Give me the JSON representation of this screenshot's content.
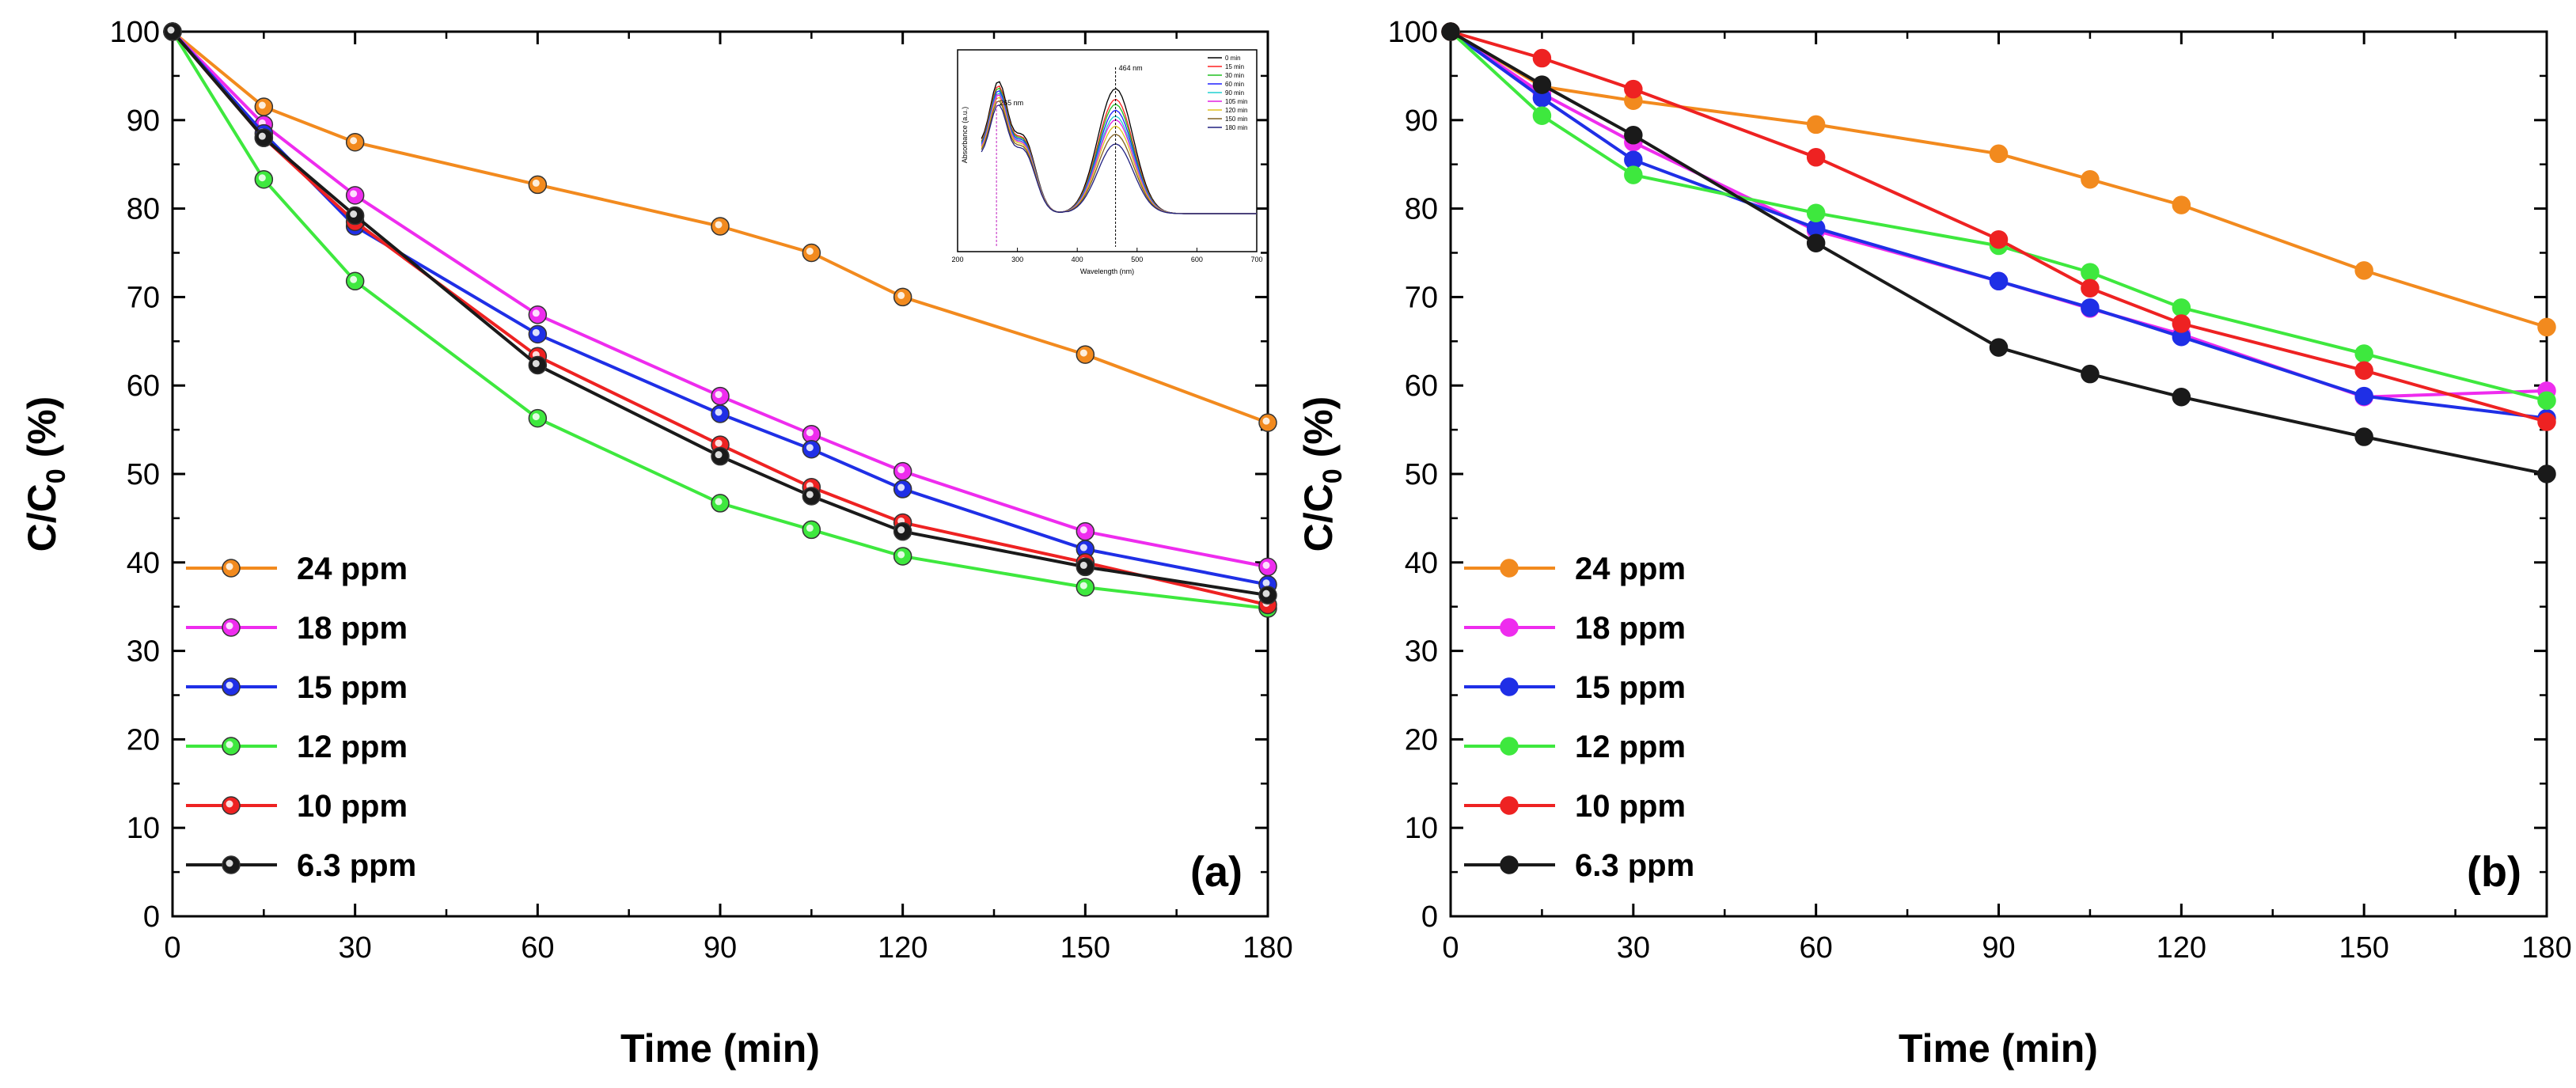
{
  "chart_data": [
    {
      "type": "line",
      "panel_label": "(a)",
      "xlabel": "Time (min)",
      "ylabel_main": "C/C",
      "ylabel_sub": "0",
      "ylabel_unit": " (%)",
      "xlim": [
        0,
        180
      ],
      "ylim": [
        0,
        100
      ],
      "x_ticks": [
        "0",
        "30",
        "60",
        "90",
        "120",
        "150",
        "180"
      ],
      "y_ticks": [
        "0",
        "10",
        "20",
        "30",
        "40",
        "50",
        "60",
        "70",
        "80",
        "90",
        "100"
      ],
      "legend_position": "bottom-left",
      "marker_style": "hollow-center",
      "x": [
        0,
        15,
        30,
        60,
        90,
        105,
        120,
        150,
        180
      ],
      "series": [
        {
          "name": "24 ppm",
          "color": "#f28a1e",
          "values": [
            100,
            91.5,
            87.5,
            82.7,
            78,
            75,
            70,
            63.5,
            55.8
          ]
        },
        {
          "name": "18 ppm",
          "color": "#ee2cee",
          "values": [
            100,
            89.5,
            81.5,
            68,
            58.8,
            54.5,
            50.3,
            43.5,
            39.5
          ]
        },
        {
          "name": "15 ppm",
          "color": "#1f2fe6",
          "values": [
            100,
            88.5,
            78,
            65.8,
            56.8,
            52.8,
            48.3,
            41.5,
            37.5
          ]
        },
        {
          "name": "12 ppm",
          "color": "#3ee83e",
          "values": [
            100,
            83.3,
            71.8,
            56.3,
            46.7,
            43.7,
            40.7,
            37.2,
            34.8
          ]
        },
        {
          "name": "10 ppm",
          "color": "#ee2222",
          "values": [
            100,
            88,
            78.5,
            63.3,
            53.3,
            48.5,
            44.5,
            40,
            35.2
          ]
        },
        {
          "name": "6.3 ppm",
          "color": "#1a1a1a",
          "values": [
            100,
            88,
            79.2,
            62.3,
            52,
            47.5,
            43.5,
            39.5,
            36.3
          ]
        }
      ],
      "inset": {
        "xlabel": "Wavelength (nm)",
        "ylabel": "Absorbance (a.u.)",
        "xlim": [
          200,
          700
        ],
        "x_ticks": [
          "200",
          "300",
          "400",
          "500",
          "600",
          "700"
        ],
        "annotations": [
          "265 nm",
          "464 nm"
        ],
        "legend": [
          "0 min",
          "15 min",
          "30 min",
          "60 min",
          "90 min",
          "105 min",
          "120 min",
          "150 min",
          "180 min"
        ],
        "colors": [
          "#000000",
          "#ff2020",
          "#20c020",
          "#2020ff",
          "#20d0d0",
          "#e020e0",
          "#e0c020",
          "#806020",
          "#202080"
        ],
        "peak_scale": [
          1.0,
          0.915,
          0.875,
          0.827,
          0.78,
          0.75,
          0.7,
          0.635,
          0.558
        ]
      }
    },
    {
      "type": "line",
      "panel_label": "(b)",
      "xlabel": "Time (min)",
      "ylabel_main": "C/C",
      "ylabel_sub": "0",
      "ylabel_unit": " (%)",
      "xlim": [
        0,
        180
      ],
      "ylim": [
        0,
        100
      ],
      "x_ticks": [
        "0",
        "30",
        "60",
        "90",
        "120",
        "150",
        "180"
      ],
      "y_ticks": [
        "0",
        "10",
        "20",
        "30",
        "40",
        "50",
        "60",
        "70",
        "80",
        "90",
        "100"
      ],
      "legend_position": "bottom-left",
      "marker_style": "filled",
      "x": [
        0,
        15,
        30,
        60,
        90,
        105,
        120,
        150,
        180
      ],
      "series": [
        {
          "name": "24 ppm",
          "color": "#f28a1e",
          "values": [
            100,
            93.8,
            92.2,
            89.5,
            86.2,
            83.3,
            80.4,
            73,
            66.6
          ]
        },
        {
          "name": "18 ppm",
          "color": "#ee2cee",
          "values": [
            100,
            93,
            87.5,
            77.5,
            71.8,
            68.7,
            65.8,
            58.7,
            59.4
          ]
        },
        {
          "name": "15 ppm",
          "color": "#1f2fe6",
          "values": [
            100,
            92.5,
            85.5,
            77.8,
            71.8,
            68.8,
            65.5,
            58.8,
            56.3
          ]
        },
        {
          "name": "12 ppm",
          "color": "#3ee83e",
          "values": [
            100,
            90.5,
            83.8,
            79.5,
            75.8,
            72.8,
            68.8,
            63.6,
            58.3
          ]
        },
        {
          "name": "10 ppm",
          "color": "#ee2222",
          "values": [
            100,
            97,
            93.5,
            85.8,
            76.5,
            71,
            67,
            61.7,
            55.9
          ]
        },
        {
          "name": "6.3 ppm",
          "color": "#1a1a1a",
          "values": [
            100,
            94,
            88.3,
            76.1,
            64.3,
            61.3,
            58.7,
            54.2,
            50
          ]
        }
      ]
    }
  ]
}
